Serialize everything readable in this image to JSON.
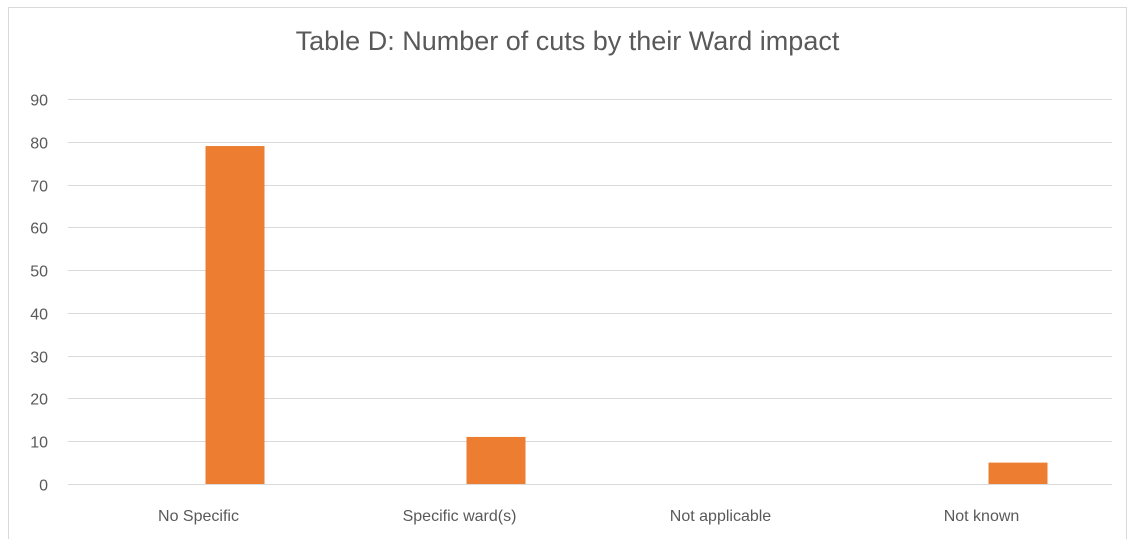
{
  "chart_data": {
    "type": "bar",
    "title": "Table D: Number of cuts by their Ward impact",
    "xlabel": "",
    "ylabel": "",
    "categories": [
      "No Specific",
      "Specific ward(s)",
      "Not applicable",
      "Not known"
    ],
    "values": [
      79,
      11,
      0,
      5
    ],
    "ylim": [
      0,
      90
    ],
    "yticks": [
      0,
      10,
      20,
      30,
      40,
      50,
      60,
      70,
      80,
      90
    ],
    "grid": true,
    "legend": "none",
    "bar_color": "#ED7D31",
    "grid_color": "#d9d9d9"
  }
}
